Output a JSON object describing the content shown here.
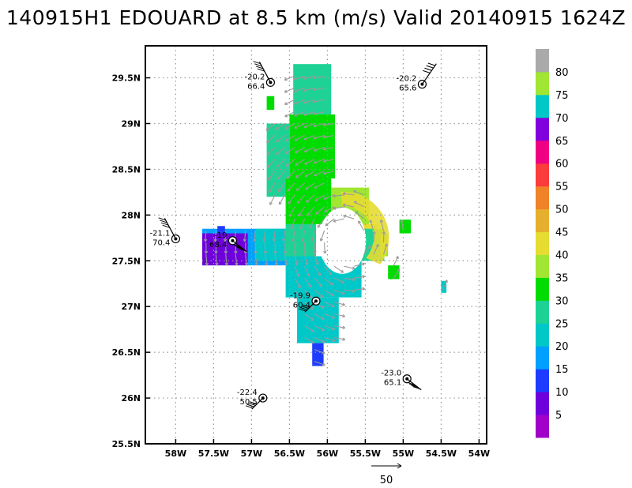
{
  "chart_data": {
    "type": "heatmap",
    "title": "140915H1 EDOUARD at 8.5 km (m/s) Valid 20140915 1624Z",
    "xlim": [
      -58.4,
      -53.9
    ],
    "ylim": [
      25.5,
      29.85
    ],
    "x_ticks": [
      -58,
      -57.5,
      -57,
      -56.5,
      -56,
      -55.5,
      -55,
      -54.5,
      -54
    ],
    "x_tick_labels": [
      "58W",
      "57.5W",
      "57W",
      "56.5W",
      "56W",
      "55.5W",
      "55W",
      "54.5W",
      "54W"
    ],
    "y_ticks": [
      25.5,
      26,
      26.5,
      27,
      27.5,
      28,
      28.5,
      29,
      29.5
    ],
    "y_tick_labels": [
      "25.5N",
      "26N",
      "26.5N",
      "27N",
      "27.5N",
      "28N",
      "28.5N",
      "29N",
      "29.5N"
    ],
    "grid": true,
    "colorbar": {
      "labels": [
        "5",
        "10",
        "15",
        "20",
        "25",
        "30",
        "35",
        "40",
        "45",
        "50",
        "55",
        "60",
        "65",
        "70",
        "75",
        "80"
      ],
      "colors": [
        "#a000c8",
        "#6e00dc",
        "#1e3cff",
        "#00a0ff",
        "#00c8c8",
        "#1ed296",
        "#00dc00",
        "#a0e632",
        "#e6dc32",
        "#e6af2d",
        "#f08228",
        "#fa3c3c",
        "#f00082",
        "#8200dc",
        "#00c8c8",
        "#a0e632",
        "#aaaaaa"
      ]
    },
    "wind_field": [
      {
        "lon_min": -56.45,
        "lon_max": -55.95,
        "lat_min": 29.1,
        "lat_max": 29.65,
        "speed": 27
      },
      {
        "lon_min": -56.5,
        "lon_max": -55.9,
        "lat_min": 28.4,
        "lat_max": 29.1,
        "speed": 31
      },
      {
        "lon_min": -56.8,
        "lon_max": -56.5,
        "lat_min": 28.2,
        "lat_max": 29.0,
        "speed": 25
      },
      {
        "lon_min": -56.55,
        "lon_max": -55.95,
        "lat_min": 27.9,
        "lat_max": 28.4,
        "speed": 31
      },
      {
        "lon_min": -56.55,
        "lon_max": -56.15,
        "lat_min": 27.55,
        "lat_max": 27.9,
        "speed": 26
      },
      {
        "lon_min": -57.65,
        "lon_max": -56.55,
        "lat_min": 27.45,
        "lat_max": 27.85,
        "speed": 16
      },
      {
        "lon_min": -57.65,
        "lon_max": -57.05,
        "lat_min": 27.45,
        "lat_max": 27.8,
        "speed": 5
      },
      {
        "lon_min": -57.45,
        "lon_max": -57.35,
        "lat_min": 27.8,
        "lat_max": 27.88,
        "speed": 10
      },
      {
        "lon_min": -56.95,
        "lon_max": -56.55,
        "lat_min": 27.5,
        "lat_max": 27.85,
        "speed": 20
      },
      {
        "lon_min": -56.55,
        "lon_max": -55.55,
        "lat_min": 27.1,
        "lat_max": 27.55,
        "speed": 24
      },
      {
        "lon_min": -56.4,
        "lon_max": -55.85,
        "lat_min": 26.6,
        "lat_max": 27.1,
        "speed": 21
      },
      {
        "lon_min": -56.2,
        "lon_max": -56.05,
        "lat_min": 26.35,
        "lat_max": 26.6,
        "speed": 14
      },
      {
        "lon_min": -56.05,
        "lon_max": -55.7,
        "lat_min": 27.6,
        "lat_max": 27.9,
        "speed": 30
      },
      {
        "lon_min": -55.95,
        "lon_max": -55.45,
        "lat_min": 27.9,
        "lat_max": 28.3,
        "speed": 37
      },
      {
        "lon_min": -55.75,
        "lon_max": -55.35,
        "lat_min": 27.55,
        "lat_max": 27.9,
        "speed": 40
      },
      {
        "lon_min": -55.6,
        "lon_max": -55.25,
        "lat_min": 27.5,
        "lat_max": 27.85,
        "speed": 28
      },
      {
        "lon_min": -55.3,
        "lon_max": -55.2,
        "lat_min": 27.55,
        "lat_max": 27.8,
        "speed": 35
      },
      {
        "lon_min": -55.05,
        "lon_max": -54.9,
        "lat_min": 27.8,
        "lat_max": 27.95,
        "speed": 31
      },
      {
        "lon_min": -55.2,
        "lon_max": -55.05,
        "lat_min": 27.3,
        "lat_max": 27.45,
        "speed": 31
      },
      {
        "lon_min": -54.5,
        "lon_max": -54.43,
        "lat_min": 27.15,
        "lat_max": 27.28,
        "speed": 22
      },
      {
        "lon_min": -56.8,
        "lon_max": -56.7,
        "lat_min": 29.15,
        "lat_max": 29.3,
        "speed": 31
      }
    ],
    "dropsondes": [
      {
        "lon": -56.75,
        "lat": 29.45,
        "temp": "-20.2",
        "pressure": "66.4"
      },
      {
        "lon": -54.75,
        "lat": 29.43,
        "temp": "-20.2",
        "pressure": "65.6"
      },
      {
        "lon": -58.0,
        "lat": 27.74,
        "temp": "-21.1",
        "pressure": "70.4"
      },
      {
        "lon": -57.25,
        "lat": 27.72,
        "temp": "-19",
        "pressure": "68.4"
      },
      {
        "lon": -56.15,
        "lat": 27.06,
        "temp": "-19.9",
        "pressure": "60.4"
      },
      {
        "lon": -54.95,
        "lat": 26.21,
        "temp": "-23.0",
        "pressure": "65.1"
      },
      {
        "lon": -56.85,
        "lat": 26.0,
        "temp": "-22.4",
        "pressure": "50.5"
      }
    ],
    "reference_vector": {
      "label": "50"
    }
  }
}
